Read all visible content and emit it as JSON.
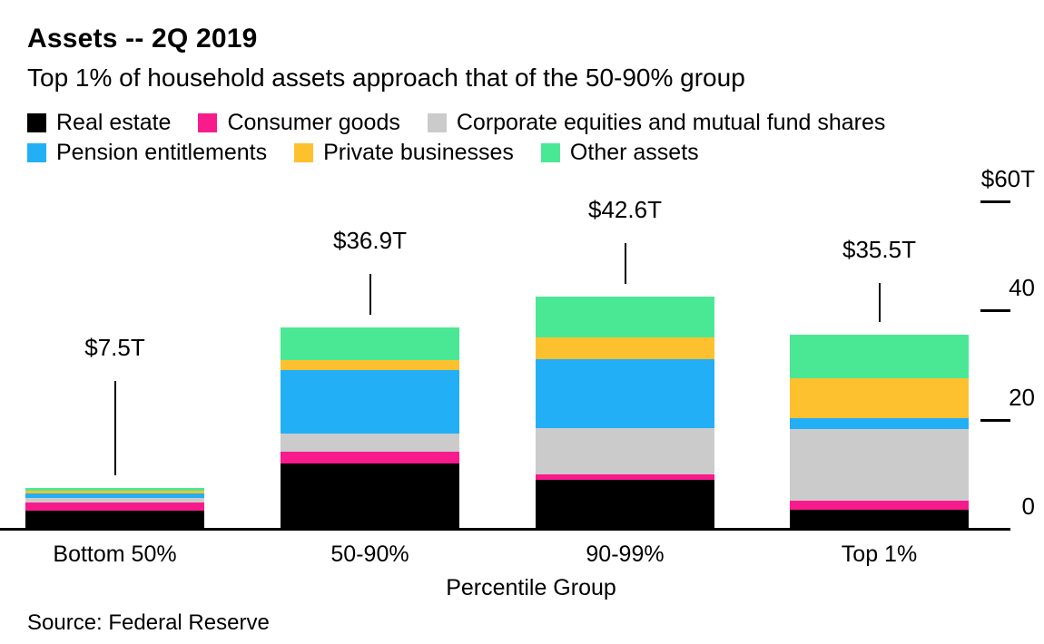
{
  "chart_data": {
    "type": "bar",
    "stacked": true,
    "title": "Assets -- 2Q 2019",
    "subtitle": "Top 1% of household assets approach that of the 50-90% group",
    "xlabel": "Percentile Group",
    "unit": "trillions of USD",
    "categories": [
      "Bottom 50%",
      "50-90%",
      "90-99%",
      "Top 1%"
    ],
    "totals": [
      7.5,
      36.9,
      42.6,
      35.5
    ],
    "total_labels": [
      "$7.5T",
      "$36.9T",
      "$42.6T",
      "$35.5T"
    ],
    "series": [
      {
        "name": "Real estate",
        "color": "#000000",
        "values": [
          3.3,
          12.0,
          8.9,
          3.5
        ]
      },
      {
        "name": "Consumer goods",
        "color": "#f81b8c",
        "values": [
          1.6,
          2.2,
          1.1,
          1.7
        ]
      },
      {
        "name": "Corporate equities and mutual fund shares",
        "color": "#cbcbcb",
        "values": [
          0.7,
          3.2,
          8.5,
          13.0
        ]
      },
      {
        "name": "Pension entitlements",
        "color": "#23aff5",
        "values": [
          0.9,
          11.7,
          12.5,
          2.0
        ]
      },
      {
        "name": "Private businesses",
        "color": "#fdc12f",
        "values": [
          0.4,
          1.8,
          4.1,
          7.4
        ]
      },
      {
        "name": "Other assets",
        "color": "#4ae894",
        "values": [
          0.6,
          6.0,
          7.5,
          7.9
        ]
      }
    ],
    "y_axis": {
      "side": "right",
      "ticks": [
        0,
        20,
        40,
        60
      ],
      "tick_labels": [
        "0",
        "20",
        "40",
        "$60T"
      ],
      "max": 60
    },
    "legend_position": "top",
    "grid": false,
    "source": "Source: Federal Reserve"
  }
}
